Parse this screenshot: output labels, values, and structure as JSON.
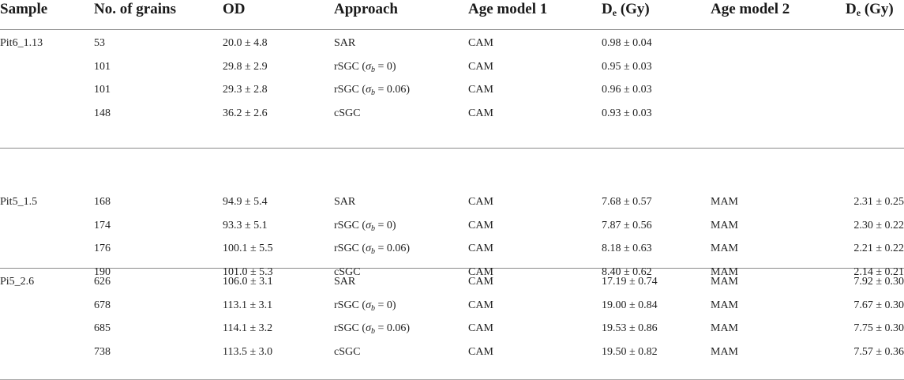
{
  "table": {
    "headers": {
      "sample": "Sample",
      "grains": "No. of grains",
      "od": "OD",
      "approach": "Approach",
      "age_model_1": "Age model 1",
      "de1_main": "D",
      "de1_sub": "e",
      "de1_unit": " (Gy)",
      "age_model_2": "Age model 2",
      "de2_main": "D",
      "de2_sub": "e",
      "de2_unit": " (Gy)"
    },
    "groups": [
      {
        "sample": "Pit6_1.13",
        "rows": [
          {
            "grains": "53",
            "od": "20.0 ± 4.8",
            "approach": "SAR",
            "sigma": "",
            "model1": "CAM",
            "de1": "0.98 ± 0.04",
            "model2": "",
            "de2": ""
          },
          {
            "grains": "101",
            "od": "29.8 ± 2.9",
            "approach": "rSGC (",
            "sigma": "σ|b| = 0)",
            "model1": "CAM",
            "de1": "0.95 ± 0.03",
            "model2": "",
            "de2": ""
          },
          {
            "grains": "101",
            "od": "29.3 ± 2.8",
            "approach": "rSGC (",
            "sigma": "σ|b| = 0.06)",
            "model1": "CAM",
            "de1": "0.96 ± 0.03",
            "model2": "",
            "de2": ""
          },
          {
            "grains": "148",
            "od": "36.2 ± 2.6",
            "approach": "cSGC",
            "sigma": "",
            "model1": "CAM",
            "de1": "0.93 ± 0.03",
            "model2": "",
            "de2": ""
          }
        ]
      },
      {
        "sample": "Pit5_1.5",
        "rows": [
          {
            "grains": "168",
            "od": "94.9 ± 5.4",
            "approach": "SAR",
            "sigma": "",
            "model1": "CAM",
            "de1": "7.68 ± 0.57",
            "model2": "MAM",
            "de2": "2.31 ± 0.25"
          },
          {
            "grains": "174",
            "od": "93.3 ± 5.1",
            "approach": "rSGC (",
            "sigma": "σ|b| = 0)",
            "model1": "CAM",
            "de1": "7.87 ± 0.56",
            "model2": "MAM",
            "de2": "2.30 ± 0.22"
          },
          {
            "grains": "176",
            "od": "100.1 ± 5.5",
            "approach": "rSGC (",
            "sigma": "σ|b| = 0.06)",
            "model1": "CAM",
            "de1": "8.18 ± 0.63",
            "model2": "MAM",
            "de2": "2.21 ± 0.22"
          },
          {
            "grains": "190",
            "od": "101.0 ± 5.3",
            "approach": "cSGC",
            "sigma": "",
            "model1": "CAM",
            "de1": "8.40 ± 0.62",
            "model2": "MAM",
            "de2": "2.14 ± 0.21"
          }
        ]
      },
      {
        "sample": "Pi5_2.6",
        "rows": [
          {
            "grains": "626",
            "od": "106.0 ± 3.1",
            "approach": "SAR",
            "sigma": "",
            "model1": "CAM",
            "de1": "17.19 ± 0.74",
            "model2": "MAM",
            "de2": "7.92 ± 0.30"
          },
          {
            "grains": "678",
            "od": "113.1 ± 3.1",
            "approach": "rSGC (",
            "sigma": "σ|b| = 0)",
            "model1": "CAM",
            "de1": "19.00 ± 0.84",
            "model2": "MAM",
            "de2": "7.67 ± 0.30"
          },
          {
            "grains": "685",
            "od": "114.1 ± 3.2",
            "approach": "rSGC (",
            "sigma": "σ|b| = 0.06)",
            "model1": "CAM",
            "de1": "19.53 ± 0.86",
            "model2": "MAM",
            "de2": "7.75 ± 0.30"
          },
          {
            "grains": "738",
            "od": "113.5 ± 3.0",
            "approach": "cSGC",
            "sigma": "",
            "model1": "CAM",
            "de1": "19.50 ± 0.82",
            "model2": "MAM",
            "de2": "7.57 ± 0.36"
          }
        ]
      }
    ]
  }
}
